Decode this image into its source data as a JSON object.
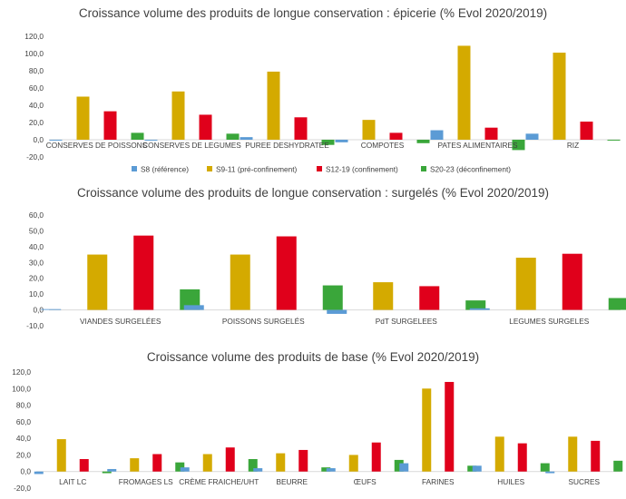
{
  "colors": {
    "s8": "#5b9bd5",
    "s9_11": "#d4aa00",
    "s12_19": "#e0001b",
    "s20_23": "#3aa63a",
    "axis": "#d9d9d9",
    "text": "#404040"
  },
  "chart_data": [
    {
      "type": "bar",
      "title": "Croissance volume des produits de longue conservation :  épicerie  (% Evol 2020/2019)",
      "categories": [
        "CONSERVES DE POISSONS",
        "CONSERVES DE LEGUMES",
        "PUREE DESHYDRATEE",
        "COMPOTES",
        "PATES ALIMENTAIRES",
        "RIZ"
      ],
      "yticks": [
        "120,0",
        "100,0",
        "80,0",
        "60,0",
        "40,0",
        "20,0",
        "0,0",
        "-20,0"
      ],
      "ylim": [
        -20,
        120
      ],
      "legend_position": "bottom",
      "series": [
        {
          "name": "S8 (référence)",
          "values": [
            -1,
            -1,
            3,
            -3,
            11,
            7
          ]
        },
        {
          "name": "S9-11 (pré-confinement)",
          "values": [
            50,
            56,
            79,
            23,
            109,
            101
          ]
        },
        {
          "name": "S12-19 (confinement)",
          "values": [
            33,
            29,
            26,
            8,
            14,
            21
          ]
        },
        {
          "name": "S20-23 (déconfinement)",
          "values": [
            8,
            7,
            -6,
            -4,
            -12,
            -1
          ]
        }
      ]
    },
    {
      "type": "bar",
      "title": "Croissance volume des produits de longue conservation :  surgelés  (% Evol 2020/2019)",
      "categories": [
        "VIANDES SURGELÉES",
        "POISSONS SURGELÉS",
        "PdT SURGELEES",
        "LEGUMES SURGELES"
      ],
      "yticks": [
        "60,0",
        "50,0",
        "40,0",
        "30,0",
        "20,0",
        "10,0",
        "0,0",
        "-10,0"
      ],
      "ylim": [
        -10,
        60
      ],
      "series": [
        {
          "values": [
            0.5,
            3,
            -2.5,
            1
          ]
        },
        {
          "values": [
            35,
            35,
            17.5,
            33
          ]
        },
        {
          "values": [
            47,
            46.5,
            15,
            35.5
          ]
        },
        {
          "values": [
            13,
            15.5,
            6,
            7.5
          ]
        }
      ]
    },
    {
      "type": "bar",
      "title": "Croissance volume  des produits de base (% Evol 2020/2019)",
      "categories": [
        "LAIT LC",
        "FROMAGES LS",
        "CRÈME FRAICHE/UHT",
        "BEURRE",
        "ŒUFS",
        "FARINES",
        "HUILES",
        "SUCRES"
      ],
      "yticks": [
        "120,0",
        "100,0",
        "80,0",
        "60,0",
        "40,0",
        "20,0",
        "0,0",
        "-20,0"
      ],
      "ylim": [
        -20,
        120
      ],
      "series": [
        {
          "values": [
            -3,
            3,
            5,
            4,
            4,
            10,
            7,
            -2
          ]
        },
        {
          "values": [
            39,
            16,
            21,
            22,
            20,
            100,
            42,
            42
          ]
        },
        {
          "values": [
            15,
            21,
            29,
            26,
            35,
            108,
            34,
            37
          ]
        },
        {
          "values": [
            -2,
            11,
            15,
            5,
            14,
            7,
            10,
            13
          ]
        }
      ]
    }
  ]
}
